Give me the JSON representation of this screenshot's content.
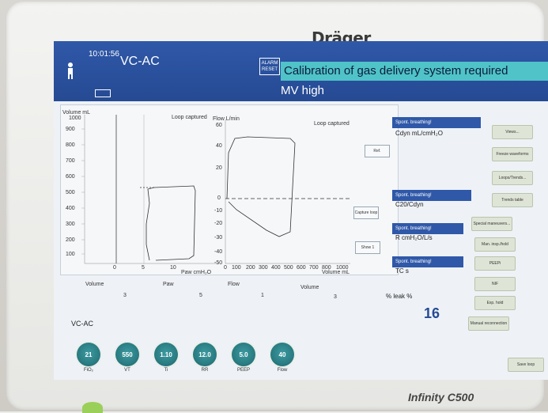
{
  "device": {
    "brand": "Dräger",
    "model_prefix": "Infinity ",
    "model": "C500"
  },
  "header": {
    "time": "10:01:56",
    "mode": "VC-AC",
    "alarm_reset": "ALARM RESET",
    "alarm_primary": "Calibration of gas delivery system required",
    "alarm_secondary": "MV high"
  },
  "graph": {
    "vol_axis_label": "Volume mL",
    "vol_top_tick": "1000",
    "vol_ticks": [
      "900",
      "800",
      "700",
      "600",
      "500",
      "400",
      "300",
      "200",
      "100"
    ],
    "paw_ticks": [
      "0",
      "5",
      "10"
    ],
    "paw_axis_label": "Paw cmH₂O",
    "loop1_label": "Loop captured",
    "flow_axis_label": "Flow L/min",
    "flow_ticks": [
      "60",
      "40",
      "20",
      "0",
      "-10",
      "-20",
      "-30",
      "-40",
      "-50"
    ],
    "loop2_label": "Loop captured",
    "vol_x_ticks": [
      "0",
      "100",
      "200",
      "300",
      "400",
      "500",
      "600",
      "700",
      "800",
      "1000"
    ],
    "vol_x_label": "Volume mL",
    "buttons": {
      "ref": "Ref.",
      "capture": "Capture loop",
      "show": "Show 1"
    }
  },
  "value_strip": [
    {
      "label": "Volume",
      "value": "3"
    },
    {
      "label": "Paw",
      "value": "5"
    },
    {
      "label": "Flow",
      "value": "1"
    },
    {
      "label": "Volume",
      "value": "3"
    }
  ],
  "params": [
    {
      "head": "Spont. breathing!",
      "label": "Cdyn mL/cmH₂O"
    },
    {
      "head": "Spont. breathing!",
      "label": "C20/Cdyn"
    },
    {
      "head": "Spont. breathing!",
      "label": "R cmH₂O/L/s"
    },
    {
      "head": "Spont. breathing!",
      "label": "TC s"
    }
  ],
  "leak": {
    "label": "% leak %",
    "value": "16"
  },
  "side_buttons": [
    "Views...",
    "Freeze waveforms",
    "Loops/Trends...",
    "Trends table",
    "Special maneuvers...",
    "Man. insp./hold",
    "PEEPi",
    "NIF",
    "Exp. hold",
    "Manual reconnection",
    "Save loop"
  ],
  "bottom": {
    "mode": "VC-AC",
    "knobs": [
      {
        "value": "21",
        "label": "FiO₂"
      },
      {
        "value": "550",
        "label": "VT"
      },
      {
        "value": "1.10",
        "label": "Ti"
      },
      {
        "value": "12.0",
        "label": "RR"
      },
      {
        "value": "5.0",
        "label": "PEEP"
      },
      {
        "value": "40",
        "label": "Flow"
      }
    ]
  }
}
